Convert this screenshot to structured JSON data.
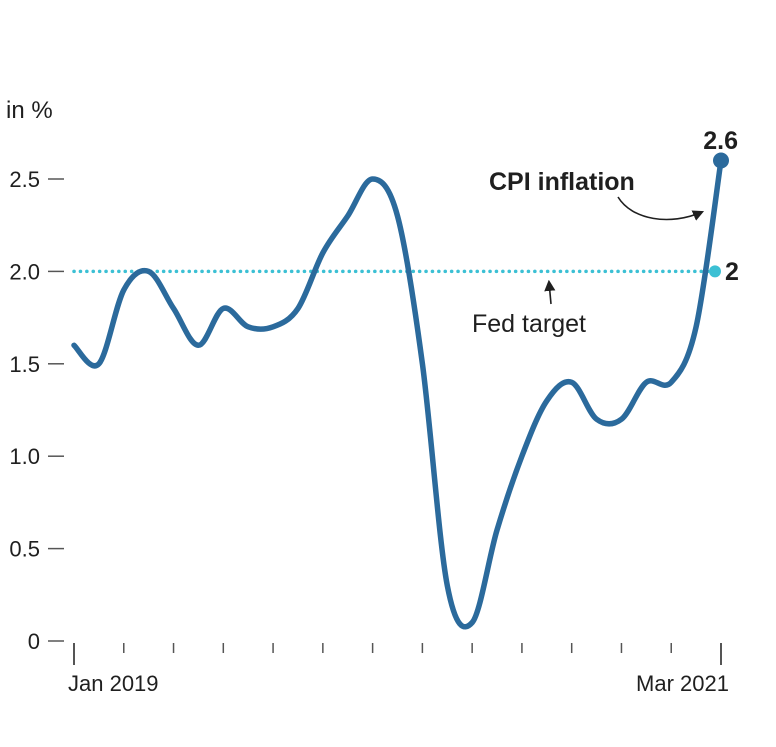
{
  "chart_data": {
    "type": "line",
    "title": "",
    "unit_label": "in %",
    "xlabel": "",
    "ylabel": "",
    "ylim": [
      0,
      2.6
    ],
    "yticks": [
      0,
      0.5,
      1.0,
      1.5,
      2.0,
      2.5
    ],
    "ytick_labels": [
      "0",
      "0.5",
      "1.0",
      "1.5",
      "2.0",
      "2.5"
    ],
    "xtick_labels": [
      "Jan 2019",
      "Mar 2021"
    ],
    "grid": false,
    "legend": "none",
    "x": [
      "2019-01",
      "2019-02",
      "2019-03",
      "2019-04",
      "2019-05",
      "2019-06",
      "2019-07",
      "2019-08",
      "2019-09",
      "2019-10",
      "2019-11",
      "2019-12",
      "2020-01",
      "2020-02",
      "2020-03",
      "2020-04",
      "2020-05",
      "2020-06",
      "2020-07",
      "2020-08",
      "2020-09",
      "2020-10",
      "2020-11",
      "2020-12",
      "2021-01",
      "2021-02",
      "2021-03"
    ],
    "series": [
      {
        "name": "CPI inflation",
        "color": "#2b6a9c",
        "values": [
          1.6,
          1.5,
          1.9,
          2.0,
          1.8,
          1.6,
          1.8,
          1.7,
          1.7,
          1.8,
          2.1,
          2.3,
          2.5,
          2.3,
          1.5,
          0.3,
          0.1,
          0.6,
          1.0,
          1.3,
          1.4,
          1.2,
          1.2,
          1.4,
          1.4,
          1.7,
          2.6
        ]
      }
    ],
    "reference_line": {
      "name": "Fed target",
      "value": 2,
      "color": "#3cc0d4"
    },
    "annotations": {
      "series_label": "CPI inflation",
      "reference_label": "Fed target",
      "end_value_label": "2.6",
      "target_value_label": "2"
    }
  }
}
